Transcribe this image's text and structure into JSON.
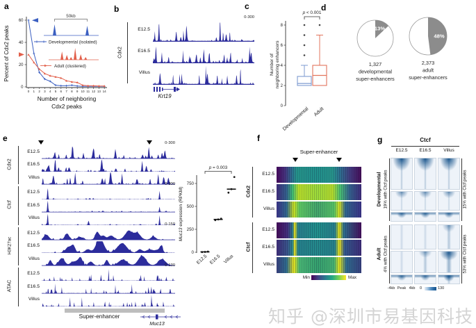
{
  "watermark": "知乎 @深圳市易基因科技",
  "panel_a": {
    "label": "a",
    "ylabel": "Percent of Cdx2 peaks",
    "xlabel1": "Number of neighboring",
    "xlabel2": "Cdx2 peaks",
    "inset_scale": "50kb",
    "legend_dev": "Developmental (isolated)",
    "legend_adult": "Adult (clustered)"
  },
  "panel_b": {
    "label": "b",
    "group": "Cdx2",
    "tracks": [
      "E12.5",
      "E16.5",
      "Villus"
    ],
    "range": "0-300",
    "gene": "Krt19"
  },
  "panel_c": {
    "label": "c",
    "pvalue": " < 0.001",
    "pvar": "p",
    "ylabel1": "Number of",
    "ylabel2": "neighboring enhancers",
    "categories": [
      "Developmental",
      "Adult"
    ]
  },
  "panel_d": {
    "label": "d",
    "pies": [
      {
        "percent": "13%",
        "value": 13,
        "line1": "1,327",
        "line2": "developmental",
        "line3": "super-enhancers"
      },
      {
        "percent": "48%",
        "value": 48,
        "line1": "2,373",
        "line2": "adult",
        "line3": "super-enhancers"
      }
    ]
  },
  "panel_e": {
    "label": "e",
    "groups": [
      {
        "name": "Cdx2",
        "range": "0-300",
        "tracks": [
          "E12.5",
          "E16.5",
          "Villus"
        ]
      },
      {
        "name": "Ctcf",
        "range": "0-300",
        "tracks": [
          "E12.5",
          "E16.5",
          "Villus"
        ]
      },
      {
        "name": "H3K27ac",
        "range": "0-150",
        "tracks": [
          "E12.5",
          "E16.5",
          "Villus"
        ]
      },
      {
        "name": "ATAC",
        "range": "0-130",
        "tracks": [
          "E12.5",
          "E16.5",
          "Villus"
        ]
      }
    ],
    "se_label": "Super-enhancer",
    "gene": "Muc13"
  },
  "panel_e_plot": {
    "pvar": "p",
    "pvalue": " = 0.003",
    "ylabel_gene": "Muc13",
    "ylabel_rest": " expression (RPKM)",
    "categories": [
      "E12.5",
      "E16.5",
      "Villus"
    ]
  },
  "panel_f": {
    "label": "f",
    "title": "Super-enhancer",
    "groups": [
      {
        "name": "Cdx2",
        "rows": [
          "E12.5",
          "E16.5",
          "Villus"
        ]
      },
      {
        "name": "Ctcf",
        "rows": [
          "E12.5",
          "E16.5",
          "Villus"
        ]
      }
    ],
    "scale_min": "Min",
    "scale_max": "Max"
  },
  "panel_g": {
    "label": "g",
    "title": "Ctcf",
    "columns": [
      "E12.5",
      "E16.5",
      "Villus"
    ],
    "row_groups": [
      {
        "name": "Developmental",
        "left": "19% with Ctcf peaks",
        "right": "15% with Ctcf peaks"
      },
      {
        "name": "Adult",
        "left": "4% with Ctcf peaks",
        "right": "53% with Ctcf peaks"
      }
    ],
    "xaxis": [
      "-4kb",
      "Peak",
      "4kb"
    ],
    "scale": [
      "0",
      "130"
    ]
  },
  "chart_data": [
    {
      "type": "line",
      "panel": "a",
      "title": "",
      "xlabel": "Number of neighboring Cdx2 peaks",
      "ylabel": "Percent of Cdx2 peaks",
      "x": [
        0,
        1,
        2,
        3,
        4,
        5,
        6,
        7,
        8,
        9,
        10,
        11,
        12,
        13,
        14
      ],
      "yticks": [
        0,
        20,
        40,
        60
      ],
      "ylim": [
        0,
        65
      ],
      "series": [
        {
          "name": "Developmental (isolated)",
          "color": "#3b5fc1",
          "values": [
            60,
            30,
            13,
            7,
            5,
            1.5,
            1,
            1,
            1.5,
            0.8,
            0.5,
            0.5,
            0.5,
            0.5,
            0.5
          ]
        },
        {
          "name": "Adult (clustered)",
          "color": "#e2604b",
          "values": [
            29,
            22,
            16,
            12,
            10,
            9,
            8,
            5.5,
            4.5,
            4,
            1.5,
            1,
            1,
            0.8,
            0.8
          ]
        }
      ]
    },
    {
      "type": "box",
      "panel": "c",
      "ylabel": "Number of neighboring enhancers",
      "yticks": [
        0,
        2,
        4,
        6,
        8
      ],
      "annotation": "p < 0.001",
      "categories": [
        "Developmental",
        "Adult"
      ],
      "boxes": [
        {
          "q1": 2,
          "median": 2.2,
          "q3": 2.9,
          "whisker_high": 4,
          "outliers": [
            5,
            6,
            7,
            8
          ],
          "color": "#7e9bd0"
        },
        {
          "q1": 2,
          "median": 3,
          "q3": 4,
          "whisker_high": 7,
          "outliers": [
            8
          ],
          "color": "#e2745c"
        }
      ]
    },
    {
      "type": "pie",
      "panel": "d",
      "slice_color": "#8c8c8c",
      "pies": [
        {
          "label": "1,327 developmental super-enhancers",
          "slices": [
            {
              "name": "overlapping",
              "value": 13
            },
            {
              "name": "other",
              "value": 87
            }
          ]
        },
        {
          "label": "2,373 adult super-enhancers",
          "slices": [
            {
              "name": "overlapping",
              "value": 48
            },
            {
              "name": "other",
              "value": 52
            }
          ]
        }
      ]
    },
    {
      "type": "scatter",
      "panel": "e",
      "ylabel": "Muc13 expression (RPKM)",
      "yticks": [
        0,
        250,
        500,
        750
      ],
      "annotation": "p = 0.003",
      "categories": [
        "E12.5",
        "E16.5",
        "Villus"
      ],
      "values": [
        [
          2,
          4,
          7
        ],
        [
          350,
          358,
          366
        ],
        [
          650,
          688,
          820
        ]
      ],
      "medians": [
        4,
        358,
        688
      ]
    },
    {
      "type": "heatmap",
      "panel": "f",
      "title": "Super-enhancer",
      "rows": [
        "Cdx2 E12.5",
        "Cdx2 E16.5",
        "Cdx2 Villus",
        "Ctcf E12.5",
        "Ctcf E16.5",
        "Ctcf Villus"
      ],
      "colorscale": [
        "Min",
        "Max"
      ],
      "boundaries_pct": [
        22,
        74
      ]
    },
    {
      "type": "heatmap",
      "panel": "g",
      "title": "Ctcf",
      "columns": [
        "E12.5",
        "E16.5",
        "Villus"
      ],
      "row_groups": [
        "Developmental",
        "Adult"
      ],
      "xrange": [
        "-4kb",
        "Peak",
        "4kb"
      ],
      "colorscale": [
        0,
        130
      ]
    }
  ]
}
